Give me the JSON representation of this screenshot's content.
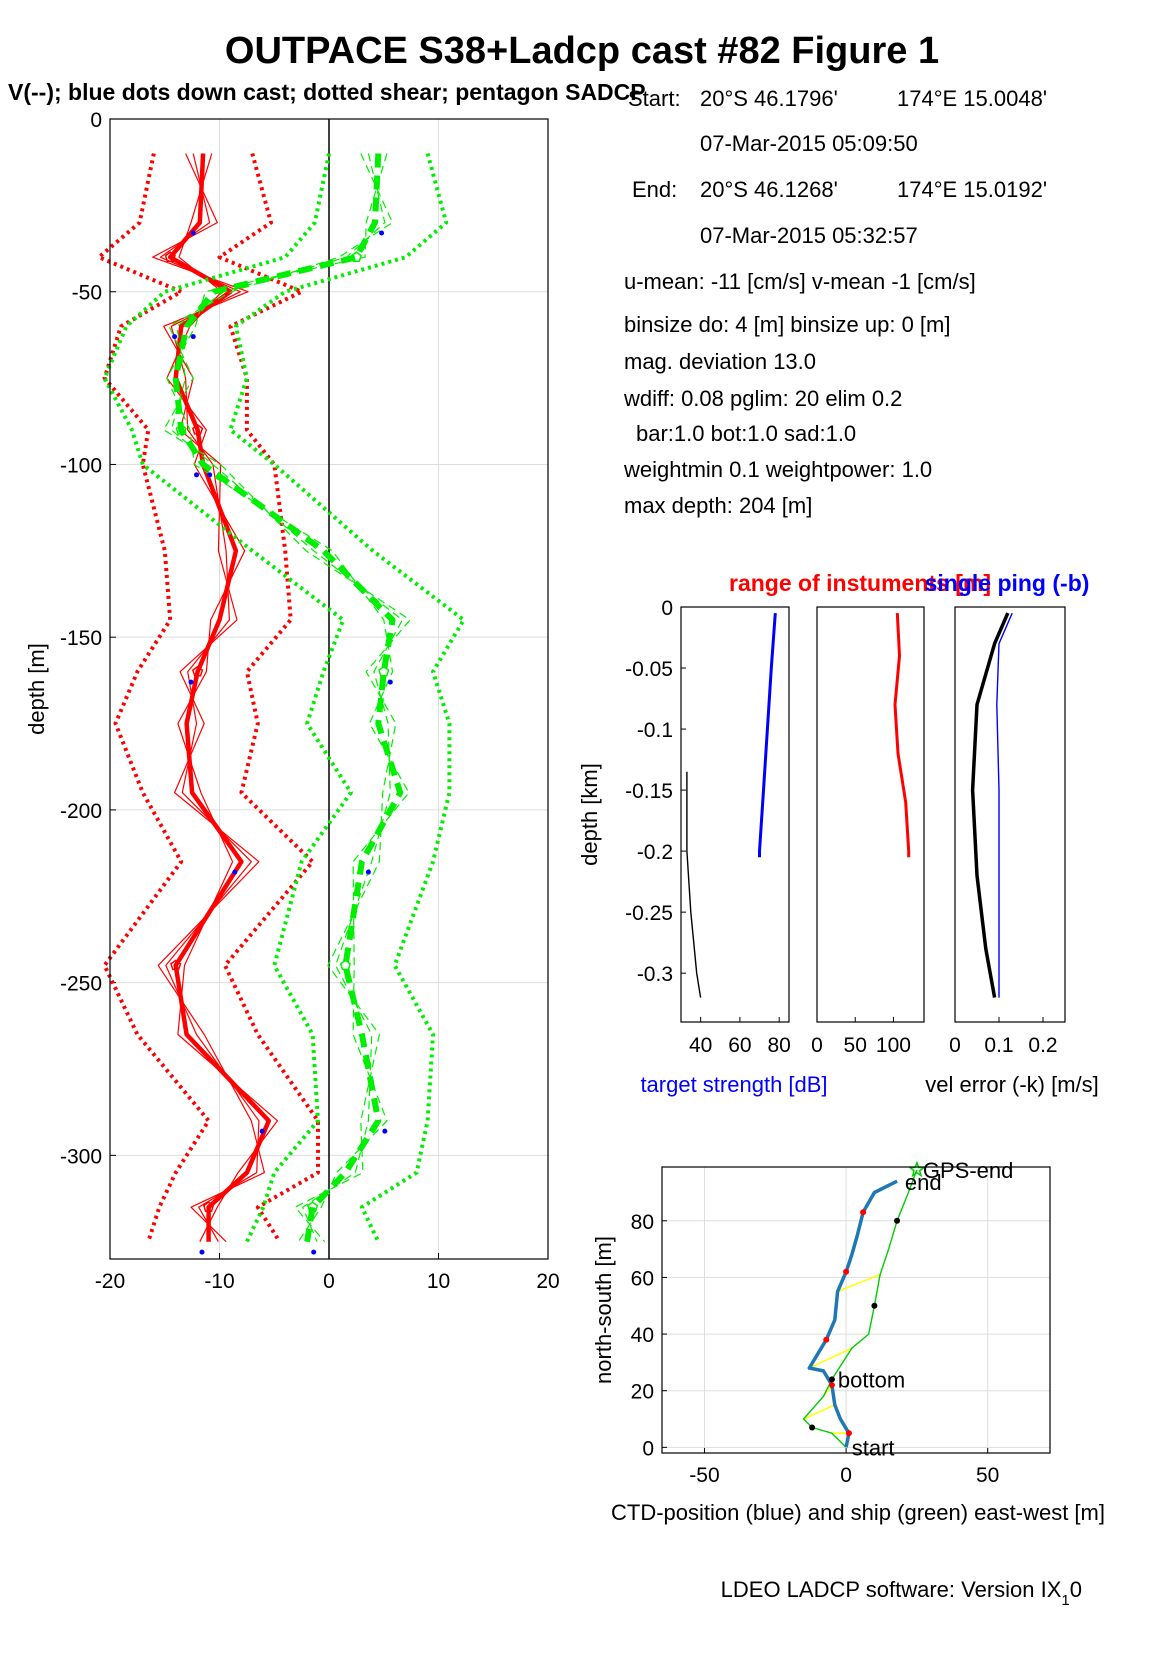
{
  "title": "OUTPACE S38+Ladcp cast #82  Figure 1",
  "subtitle": "V(--); blue dots down cast; dotted shear; pentagon SADCP",
  "info": {
    "start_label": "Start:",
    "start_lat": "20°S 46.1796'",
    "start_lon": "174°E 15.0048'",
    "start_time": "07-Mar-2015 05:09:50",
    "end_label": "End:",
    "end_lat": "20°S 46.1268'",
    "end_lon": "174°E 15.0192'",
    "end_time": "07-Mar-2015 05:32:57",
    "means": "u-mean: -11 [cm/s]    v-mean  -1 [cm/s]",
    "binsize": "binsize do: 4 [m]  binsize up:  0 [m]",
    "magdev": "mag. deviation 13.0",
    "wdiff": "wdiff: 0.08  pglim: 20  elim 0.2",
    "bar": "bar:1.0 bot:1.0 sad:1.0",
    "weight": "weightmin 0.1  weightpower: 1.0",
    "maxdepth": "max depth: 204 [m]"
  },
  "footer": "LDEO LADCP software: Version IX",
  "footer_sub": "1",
  "footer_end": "0",
  "colors": {
    "u": "#ff0000",
    "v": "#00ee00",
    "target": "#0000ff",
    "ctd": "#1f77b4",
    "ship": "#00cc00",
    "link": "#ffff00"
  },
  "chart_data": [
    {
      "type": "line",
      "name": "velocity-profile",
      "ylabel": "depth [m]",
      "xlim": [
        -20,
        20
      ],
      "ylim": [
        -330,
        0
      ],
      "xticks": [
        "-20",
        "-10",
        "0",
        "10",
        "20"
      ],
      "yticks": [
        "0",
        "-50",
        "-100",
        "-150",
        "-200",
        "-250",
        "-300"
      ],
      "grid": true,
      "depths": [
        -10,
        -30,
        -40,
        -50,
        -60,
        -75,
        -90,
        -100,
        -125,
        -145,
        -160,
        -175,
        -195,
        -215,
        -245,
        -265,
        -290,
        -305,
        -315,
        -325
      ],
      "series": [
        {
          "name": "u",
          "values": [
            -11.5,
            -11.8,
            -14.5,
            -9.0,
            -13.5,
            -14.0,
            -12.0,
            -11.5,
            -8.5,
            -10.0,
            -12.0,
            -13.0,
            -12.5,
            -8.0,
            -14.0,
            -13.0,
            -5.5,
            -7.5,
            -11.0,
            -11.0
          ]
        },
        {
          "name": "v",
          "values": [
            4.5,
            4.2,
            2.5,
            -10.5,
            -13.0,
            -14.0,
            -13.5,
            -11.5,
            -0.5,
            5.8,
            5.0,
            4.5,
            6.5,
            3.0,
            1.5,
            3.0,
            4.5,
            1.5,
            -1.5,
            -2.0
          ]
        }
      ]
    },
    {
      "type": "line",
      "name": "target-strength",
      "ylabel": "depth [km]",
      "xlabel": "target strength [dB]",
      "xlim": [
        30,
        85
      ],
      "ylim": [
        -0.34,
        0
      ],
      "xticks": [
        "40",
        "60",
        "80"
      ],
      "yticks": [
        "0",
        "-0.05",
        "-0.1",
        "-0.15",
        "-0.2",
        "-0.25",
        "-0.3"
      ],
      "depths": [
        -0.005,
        -0.05,
        -0.1,
        -0.15,
        -0.2,
        -0.205
      ],
      "values": [
        78,
        76,
        74,
        72,
        70,
        70
      ],
      "ref_depths": [
        -0.135,
        -0.2,
        -0.25,
        -0.3,
        -0.32
      ],
      "ref_values": [
        33,
        33,
        35,
        38,
        40
      ]
    },
    {
      "type": "line",
      "name": "instrument-range",
      "title": "range of instuments [m]",
      "xlim": [
        0,
        140
      ],
      "ylim": [
        -0.34,
        0
      ],
      "xticks": [
        "0",
        "50",
        "100"
      ],
      "depths": [
        -0.005,
        -0.04,
        -0.08,
        -0.12,
        -0.16,
        -0.2,
        -0.205
      ],
      "values": [
        105,
        108,
        102,
        106,
        116,
        120,
        120
      ]
    },
    {
      "type": "line",
      "name": "velocity-error",
      "title": "single ping (-b)",
      "xlabel": "vel error (-k) [m/s]",
      "xlim": [
        0,
        0.25
      ],
      "ylim": [
        -0.34,
        0
      ],
      "xticks": [
        "0",
        "0.1",
        "0.2"
      ],
      "depths": [
        -0.005,
        -0.03,
        -0.08,
        -0.15,
        -0.22,
        -0.28,
        -0.32
      ],
      "values": [
        0.12,
        0.09,
        0.05,
        0.04,
        0.05,
        0.07,
        0.09
      ],
      "single_ping": [
        0.13,
        0.1,
        0.095,
        0.1,
        0.1,
        0.1,
        0.1
      ]
    },
    {
      "type": "line",
      "name": "ctd-ship-track",
      "xlabel": "CTD-position (blue) and ship (green) east-west [m]",
      "ylabel": "north-south [m]",
      "xlim": [
        -65,
        72
      ],
      "ylim": [
        -2,
        99
      ],
      "xticks": [
        "-50",
        "0",
        "50"
      ],
      "yticks": [
        "0",
        "20",
        "40",
        "60",
        "80"
      ],
      "grid": true,
      "ctd_x": [
        0,
        1,
        -2,
        -4,
        -5,
        -8,
        -13,
        -7,
        -4,
        -3,
        0,
        2,
        4,
        6,
        10,
        18
      ],
      "ctd_y": [
        0,
        5,
        10,
        15,
        22,
        27,
        28,
        38,
        45,
        55,
        62,
        68,
        75,
        83,
        90,
        94
      ],
      "ship_x": [
        0,
        -5,
        -12,
        -15,
        -8,
        -5,
        2,
        8,
        10,
        12,
        15,
        18,
        22,
        25
      ],
      "ship_y": [
        0,
        5,
        7,
        10,
        18,
        24,
        35,
        40,
        50,
        61,
        70,
        80,
        90,
        98
      ],
      "annotations": [
        "GPS-end",
        "end",
        "bottom",
        "start"
      ]
    }
  ]
}
